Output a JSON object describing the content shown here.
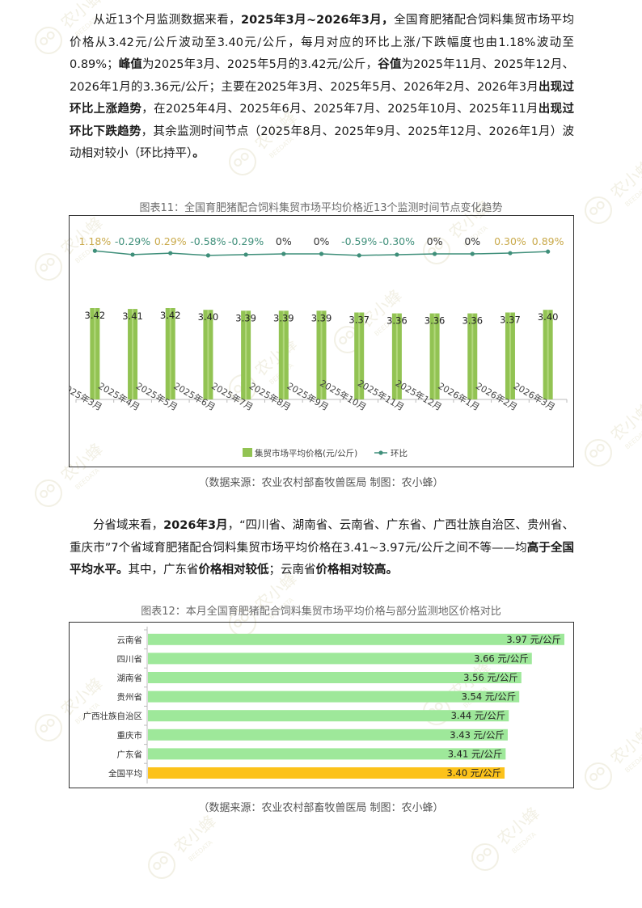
{
  "para1": {
    "s1": "从近13个月监测数据来看，",
    "b1": "2025年3月~2026年3月，",
    "s2": "全国育肥猪配合饲料集贸市场平均价格从3.42元/公斤波动至3.40元/公斤，每月对应的环比上涨/下跌幅度也由1.18%波动至0.89%；",
    "b2": "峰值",
    "s3": "为2025年3月、2025年5月的3.42元/公斤，",
    "b3": "谷值",
    "s4": "为2025年11月、2025年12月、2026年1月的3.36元/公斤；主要在2025年3月、2025年5月、2026年2月、2026年3月",
    "b4": "出现过环比上涨趋势",
    "s5": "，在2025年4月、2025年6月、2025年7月、2025年10月、2025年11月",
    "b5": "出现过环比下跌趋势",
    "s6": "，其余监测时间节点（2025年8月、2025年9月、2025年12月、2026年1月）波动相对较小（环比持平）",
    "b6": "。"
  },
  "caption1": "图表11：全国育肥猪配合饲料集贸市场平均价格近13个监测时间节点变化趋势",
  "source1": "（数据来源：农业农村部畜牧兽医局      制图：农小蜂）",
  "para2": {
    "s1": "分省域来看，",
    "b1": "2026年3月",
    "s2": "，“四川省、湖南省、云南省、广东省、广西壮族自治区、贵州省、重庆市”7个省域育肥猪配合饲料集贸市场平均价格在3.41~3.97元/公斤之间不等——均",
    "b2": "高于全国平均水平。",
    "s3": "其中，广东省",
    "b3": "价格相对较低",
    "s4": "；云南省",
    "b4": "价格相对较高。"
  },
  "caption2": "图表12：本月全国育肥猪配合饲料集贸市场平均价格与部分监测地区价格对比",
  "source2": "（数据来源：农业农村部畜牧兽医局      制图：农小蜂）",
  "watermark": {
    "text": "农小蜂",
    "subtext": "BEEDATA"
  },
  "colors": {
    "bar_green": "#92c353",
    "line_teal": "#3f8f7a",
    "pos_label": "#c9a94a",
    "neg_label": "#3f8f7a",
    "hbar_green": "#9ee89a",
    "hbar_gold": "#fcc21b"
  },
  "chart_data": [
    {
      "type": "bar",
      "categories": [
        "2025年3月",
        "2025年4月",
        "2025年5月",
        "2025年6月",
        "2025年7月",
        "2025年8月",
        "2025年9月",
        "2025年10月",
        "2025年11月",
        "2025年12月",
        "2026年1月",
        "2026年2月",
        "2026年3月"
      ],
      "series": [
        {
          "name": "集贸市场平均价格(元/公斤)",
          "type": "bar",
          "values": [
            3.42,
            3.41,
            3.42,
            3.4,
            3.39,
            3.39,
            3.39,
            3.37,
            3.36,
            3.36,
            3.36,
            3.37,
            3.4
          ],
          "labels": [
            "3.42",
            "3.41",
            "3.42",
            "3.40",
            "3.39",
            "3.39",
            "3.39",
            "3.37",
            "3.36",
            "3.36",
            "3.36",
            "3.37",
            "3.40"
          ]
        },
        {
          "name": "环比",
          "type": "line",
          "values": [
            1.18,
            -0.29,
            0.29,
            -0.58,
            -0.29,
            0,
            0,
            -0.59,
            -0.3,
            0,
            0,
            0.3,
            0.89
          ],
          "labels": [
            "1.18%",
            "-0.29%",
            "0.29%",
            "-0.58%",
            "-0.29%",
            "0%",
            "0%",
            "-0.59%",
            "-0.30%",
            "0%",
            "0%",
            "0.30%",
            "0.89%"
          ]
        }
      ],
      "legend": "bottom"
    },
    {
      "type": "bar",
      "orientation": "horizontal",
      "categories": [
        "云南省",
        "四川省",
        "湖南省",
        "贵州省",
        "广西壮族自治区",
        "重庆市",
        "广东省",
        "全国平均"
      ],
      "values": [
        3.97,
        3.66,
        3.56,
        3.54,
        3.44,
        3.43,
        3.41,
        3.4
      ],
      "labels": [
        "3.97 元/公斤",
        "3.66 元/公斤",
        "3.56 元/公斤",
        "3.54 元/公斤",
        "3.44 元/公斤",
        "3.43 元/公斤",
        "3.41 元/公斤",
        "3.40 元/公斤"
      ],
      "highlight": "全国平均"
    }
  ]
}
